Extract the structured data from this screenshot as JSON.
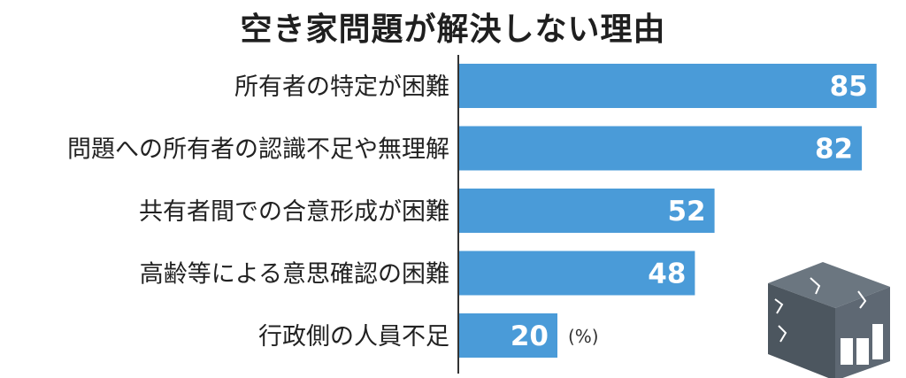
{
  "chart_data": {
    "type": "bar",
    "orientation": "horizontal",
    "title": "空き家問題が解決しない理由",
    "categories": [
      "所有者の特定が困難",
      "問題への所有者の認識不足や無理解",
      "共有者間での合意形成が困難",
      "高齢等による意思確認の困難",
      "行政側の人員不足"
    ],
    "values": [
      85,
      82,
      52,
      48,
      20
    ],
    "unit": "(%)",
    "xlim": [
      0,
      100
    ],
    "grid": false,
    "bar_color": "#4a9bd8",
    "label_color": "#ffffff"
  },
  "decoration": {
    "icon": "broken-house-icon",
    "color": "#5a6570"
  }
}
